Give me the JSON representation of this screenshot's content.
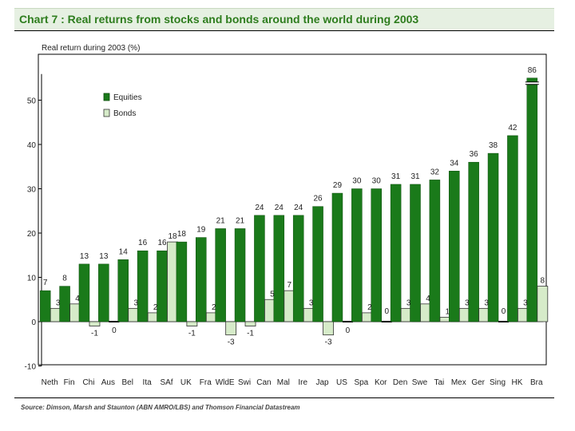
{
  "header": {
    "title": "Chart 7 : Real returns from stocks and bonds around the world during 2003"
  },
  "footer": {
    "source": "Source: Dimson, Marsh and Staunton (ABN AMRO/LBS) and Thomson Financial Datastream"
  },
  "colors": {
    "equities": "#1a7a1a",
    "bonds": "#d6ebc9",
    "title": "#2e7d1e"
  },
  "chart_data": {
    "type": "bar",
    "title": "Chart 7 : Real returns from stocks and bonds around the world during 2003",
    "ylabel": "Real return during 2003 (%)",
    "xlabel": "",
    "ylim": [
      -10,
      55
    ],
    "yticks": [
      -10,
      0,
      10,
      20,
      30,
      40,
      50
    ],
    "grid": false,
    "legend": "top-left",
    "categories": [
      "Neth",
      "Fin",
      "Chi",
      "Aus",
      "Bel",
      "Ita",
      "SAf",
      "UK",
      "Fra",
      "WldE",
      "Swi",
      "Can",
      "Mal",
      "Ire",
      "Jap",
      "US",
      "Spa",
      "Kor",
      "Den",
      "Swe",
      "Tai",
      "Mex",
      "Ger",
      "Sing",
      "HK",
      "Bra"
    ],
    "series": [
      {
        "name": "Equities",
        "values": [
          7,
          8,
          13,
          13,
          14,
          16,
          16,
          18,
          19,
          21,
          21,
          24,
          24,
          24,
          26,
          29,
          30,
          30,
          31,
          31,
          32,
          34,
          36,
          38,
          42,
          86
        ],
        "labels": [
          "7",
          "8",
          "13",
          "13",
          "14",
          "16",
          "16",
          "18",
          "19",
          "21",
          "21",
          "24",
          "24",
          "24",
          "26",
          "29",
          "30",
          "30",
          "31",
          "31",
          "32",
          "34",
          "36",
          "38",
          "42",
          "86"
        ]
      },
      {
        "name": "Bonds",
        "values": [
          3,
          4,
          -1,
          0,
          3,
          2,
          18,
          -1,
          2,
          -3,
          -1,
          5,
          7,
          3,
          -3,
          0,
          2,
          0,
          3,
          4,
          1,
          3,
          3,
          0,
          3,
          8
        ],
        "labels": [
          "3",
          "4",
          "-1",
          "0",
          "3",
          "2",
          "18",
          "-1",
          "2",
          "-3",
          "-1",
          "5",
          "7",
          "3",
          "-3",
          "0",
          "2",
          "0",
          "3",
          "4",
          "1",
          "3",
          "3",
          "0",
          "3",
          "8"
        ]
      }
    ],
    "axis_break": {
      "category": "Bra",
      "series": "Equities",
      "value": 86
    }
  }
}
